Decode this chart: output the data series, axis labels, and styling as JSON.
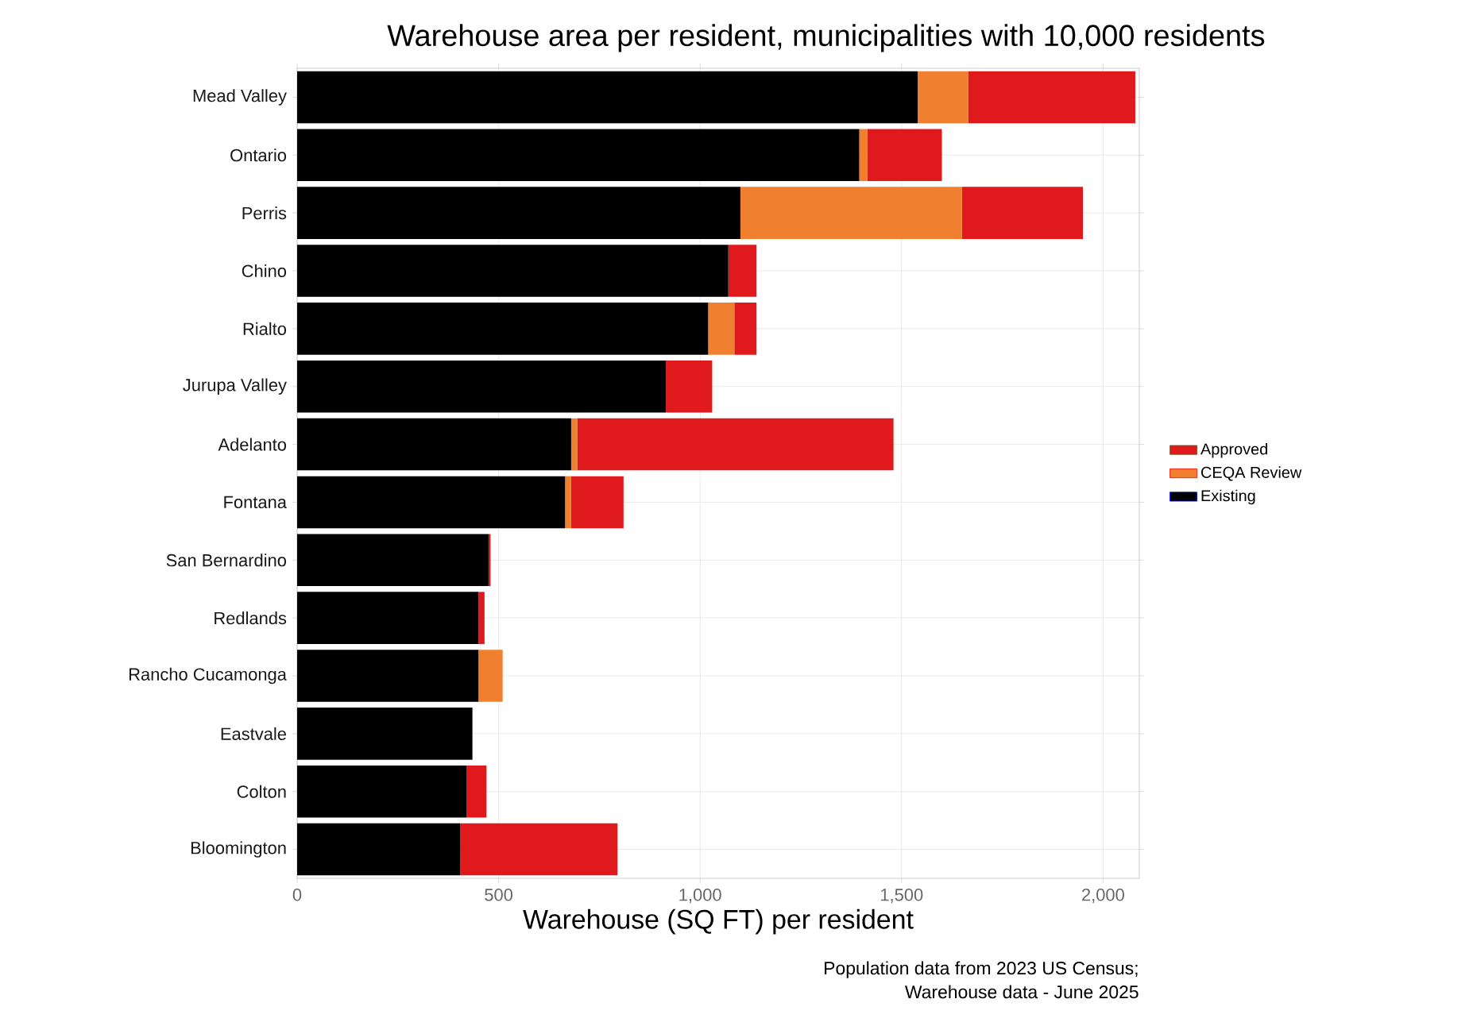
{
  "chart_data": {
    "type": "bar",
    "orientation": "horizontal",
    "stacked": true,
    "title": "Warehouse area per resident, municipalities with 10,000 residents",
    "xlabel": "Warehouse (SQ FT) per resident",
    "categories": [
      "Mead Valley",
      "Ontario",
      "Perris",
      "Chino",
      "Rialto",
      "Jurupa Valley",
      "Adelanto",
      "Fontana",
      "San Bernardino",
      "Redlands",
      "Rancho Cucamonga",
      "Eastvale",
      "Colton",
      "Bloomington"
    ],
    "series": [
      {
        "name": "Existing",
        "color": "#000000",
        "values": [
          1540,
          1395,
          1100,
          1070,
          1020,
          915,
          680,
          665,
          475,
          450,
          450,
          435,
          420,
          405
        ]
      },
      {
        "name": "CEQA Review",
        "color": "#f08030",
        "values": [
          125,
          20,
          550,
          0,
          65,
          0,
          15,
          15,
          0,
          0,
          60,
          0,
          0,
          0
        ]
      },
      {
        "name": "Approved",
        "color": "#e0191c",
        "values": [
          415,
          185,
          300,
          70,
          55,
          115,
          785,
          130,
          5,
          15,
          0,
          0,
          50,
          390
        ]
      }
    ],
    "xlim": [
      0,
      2090
    ],
    "xticks": [
      0,
      500,
      {
        "value": 1000,
        "label": "1,000"
      },
      {
        "value": 1500,
        "label": "1,500"
      },
      {
        "value": 2000,
        "label": "2,000"
      }
    ],
    "grid": true,
    "legend": "right",
    "annotations": [
      "Population data from 2023 US Census;",
      "Warehouse data - June 2025"
    ]
  }
}
